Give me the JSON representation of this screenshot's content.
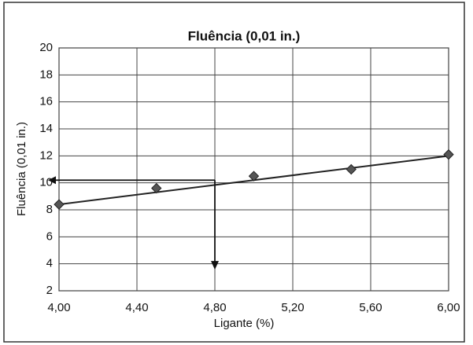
{
  "chart_data": {
    "type": "line",
    "title": "Fluência (0,01 in.)",
    "x_label": "Ligante (%)",
    "y_label": "Fluência (0,01 in.)",
    "x": [
      4.0,
      4.5,
      5.0,
      5.5,
      6.0
    ],
    "series": [
      {
        "name": "Fluência",
        "color": "#555555",
        "values": [
          8.4,
          9.6,
          10.5,
          11.0,
          12.1
        ]
      }
    ],
    "trendline": {
      "x": [
        4.0,
        6.0
      ],
      "values": [
        8.4,
        12.0
      ],
      "color": "#222222"
    },
    "reading": {
      "x": 4.8,
      "y": 10.2,
      "y_end": 3.8
    },
    "xlim": [
      4.0,
      6.0
    ],
    "xticks": [
      {
        "value": 4.0,
        "label": "4,00"
      },
      {
        "value": 4.4,
        "label": "4,40"
      },
      {
        "value": 4.8,
        "label": "4,80"
      },
      {
        "value": 5.2,
        "label": "5,20"
      },
      {
        "value": 5.6,
        "label": "5,60"
      },
      {
        "value": 6.0,
        "label": "6,00"
      }
    ],
    "ylim": [
      2,
      20
    ],
    "yticks": [
      2,
      4,
      6,
      8,
      10,
      12,
      14,
      16,
      18,
      20
    ],
    "grid": true
  }
}
